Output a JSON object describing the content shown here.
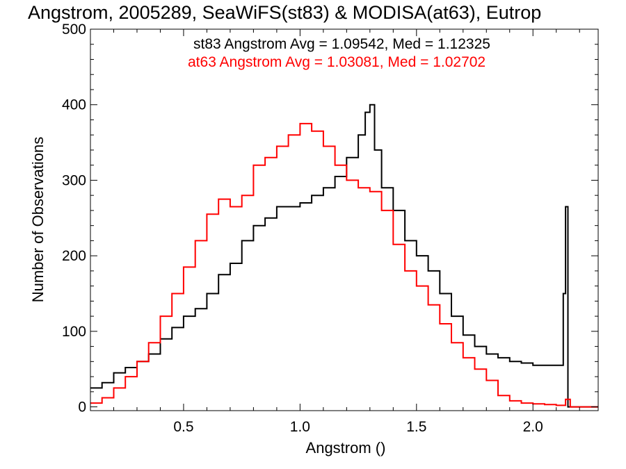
{
  "chart_data": {
    "type": "line",
    "title": "Angstrom, 2005289, SeaWiFS(st83) & MODISA(at63), Eutrop",
    "xlabel": "Angstrom ()",
    "ylabel": "Number of Observations",
    "xlim": [
      0.1,
      2.28
    ],
    "ylim": [
      -5,
      500
    ],
    "xticks": [
      0.5,
      1.0,
      1.5,
      2.0
    ],
    "xtick_labels": [
      "0.5",
      "1.0",
      "1.5",
      "2.0"
    ],
    "yticks": [
      0,
      100,
      200,
      300,
      400,
      500
    ],
    "ytick_labels": [
      "0",
      "100",
      "200",
      "300",
      "400",
      "500"
    ],
    "grid": false,
    "legend": "top-right",
    "annotations": [
      {
        "text": "st83 Angstrom Avg = 1.09542, Med = 1.12325",
        "color": "#000000"
      },
      {
        "text": "at63 Angstrom Avg = 1.03081, Med = 1.02702",
        "color": "#ff0000"
      }
    ],
    "series": [
      {
        "name": "st83",
        "color": "#000000",
        "style": "step",
        "x": [
          0.1,
          0.15,
          0.2,
          0.25,
          0.3,
          0.35,
          0.4,
          0.45,
          0.5,
          0.55,
          0.6,
          0.65,
          0.7,
          0.75,
          0.8,
          0.85,
          0.9,
          0.95,
          1.0,
          1.05,
          1.1,
          1.15,
          1.2,
          1.25,
          1.28,
          1.3,
          1.32,
          1.35,
          1.4,
          1.45,
          1.5,
          1.55,
          1.6,
          1.65,
          1.7,
          1.75,
          1.8,
          1.85,
          1.9,
          1.95,
          2.0,
          2.05,
          2.1,
          2.13,
          2.14,
          2.15,
          2.16,
          2.2,
          2.28
        ],
        "y": [
          25,
          32,
          45,
          52,
          60,
          70,
          90,
          105,
          120,
          130,
          150,
          175,
          190,
          220,
          240,
          250,
          265,
          265,
          270,
          280,
          290,
          305,
          330,
          360,
          390,
          400,
          340,
          290,
          260,
          220,
          200,
          180,
          150,
          120,
          95,
          80,
          70,
          65,
          60,
          58,
          55,
          55,
          55,
          150,
          265,
          0,
          0,
          0,
          0
        ]
      },
      {
        "name": "at63",
        "color": "#ff0000",
        "style": "step",
        "x": [
          0.1,
          0.15,
          0.2,
          0.25,
          0.3,
          0.35,
          0.4,
          0.45,
          0.5,
          0.55,
          0.6,
          0.65,
          0.7,
          0.75,
          0.8,
          0.85,
          0.9,
          0.95,
          1.0,
          1.05,
          1.1,
          1.15,
          1.2,
          1.25,
          1.3,
          1.35,
          1.4,
          1.45,
          1.5,
          1.55,
          1.6,
          1.65,
          1.7,
          1.75,
          1.8,
          1.85,
          1.9,
          1.95,
          2.0,
          2.05,
          2.1,
          2.14,
          2.16,
          2.2,
          2.28
        ],
        "y": [
          5,
          12,
          25,
          40,
          60,
          85,
          120,
          150,
          185,
          220,
          255,
          275,
          265,
          280,
          320,
          330,
          345,
          360,
          375,
          365,
          345,
          320,
          300,
          290,
          285,
          260,
          215,
          180,
          160,
          135,
          110,
          85,
          65,
          50,
          35,
          15,
          8,
          5,
          4,
          3,
          2,
          10,
          0,
          0,
          0
        ]
      }
    ]
  }
}
